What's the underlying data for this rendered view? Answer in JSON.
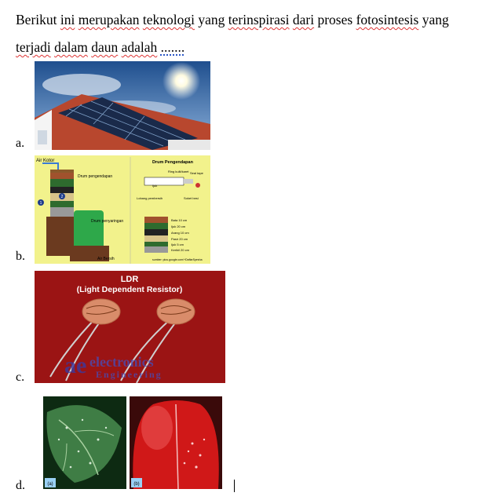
{
  "question": {
    "words": [
      "Berikut",
      "ini",
      "merupakan",
      "teknologi",
      "yang",
      "terinspirasi",
      "dari",
      "proses",
      "fotosintesis",
      "yang",
      "terjadi",
      "dalam",
      "daun",
      "adalah",
      "......."
    ],
    "flagged": [
      false,
      true,
      true,
      true,
      false,
      true,
      true,
      false,
      true,
      false,
      true,
      true,
      true,
      true,
      false
    ]
  },
  "options": [
    {
      "letter": "a.",
      "image": "solar-panel-roof-photo"
    },
    {
      "letter": "b.",
      "image": "water-filter-drum-diagram"
    },
    {
      "letter": "c.",
      "image": "ldr-sensor-photo"
    },
    {
      "letter": "d.",
      "image": "leaf-and-car-water-droplets-photo"
    }
  ],
  "filter_diagram": {
    "air_kotor": "Air Kotor",
    "drum_pengendapan": "Drum pengendapan",
    "drum_penyaringan": "Drum penyaringan",
    "air_bersih": "Air Bersih",
    "panel_title": "Drum Pengendapan",
    "ring": "Ring kulit/karet",
    "seal_tape": "Seal tape",
    "ijuk": "Ijuk",
    "lobang": "Lobang pembersih",
    "soket": "Soket besi",
    "layers": [
      "Bata 10 cm",
      "Ijuk 20 cm",
      "Arang 10 cm",
      "Pasir 20 cm",
      "Ijuk 5 cm",
      "Kerikil 20 cm"
    ],
    "source": "sumber: plus.google.com/+DaftarSpesha",
    "n1": "1",
    "n2": "2"
  },
  "ldr": {
    "title1": "LDR",
    "title2": "(Light Dependent Resistor)",
    "wm1": "electronics",
    "wm2": "Engineering",
    "wm_logo": "ae"
  },
  "photo_d": {
    "left": "(a)",
    "right": "(b)"
  },
  "colors": {
    "spell": "#d33333",
    "grammar": "#2a56c6",
    "ldr_bg": "#9b1414",
    "filter_bg": "#f2f28c"
  }
}
